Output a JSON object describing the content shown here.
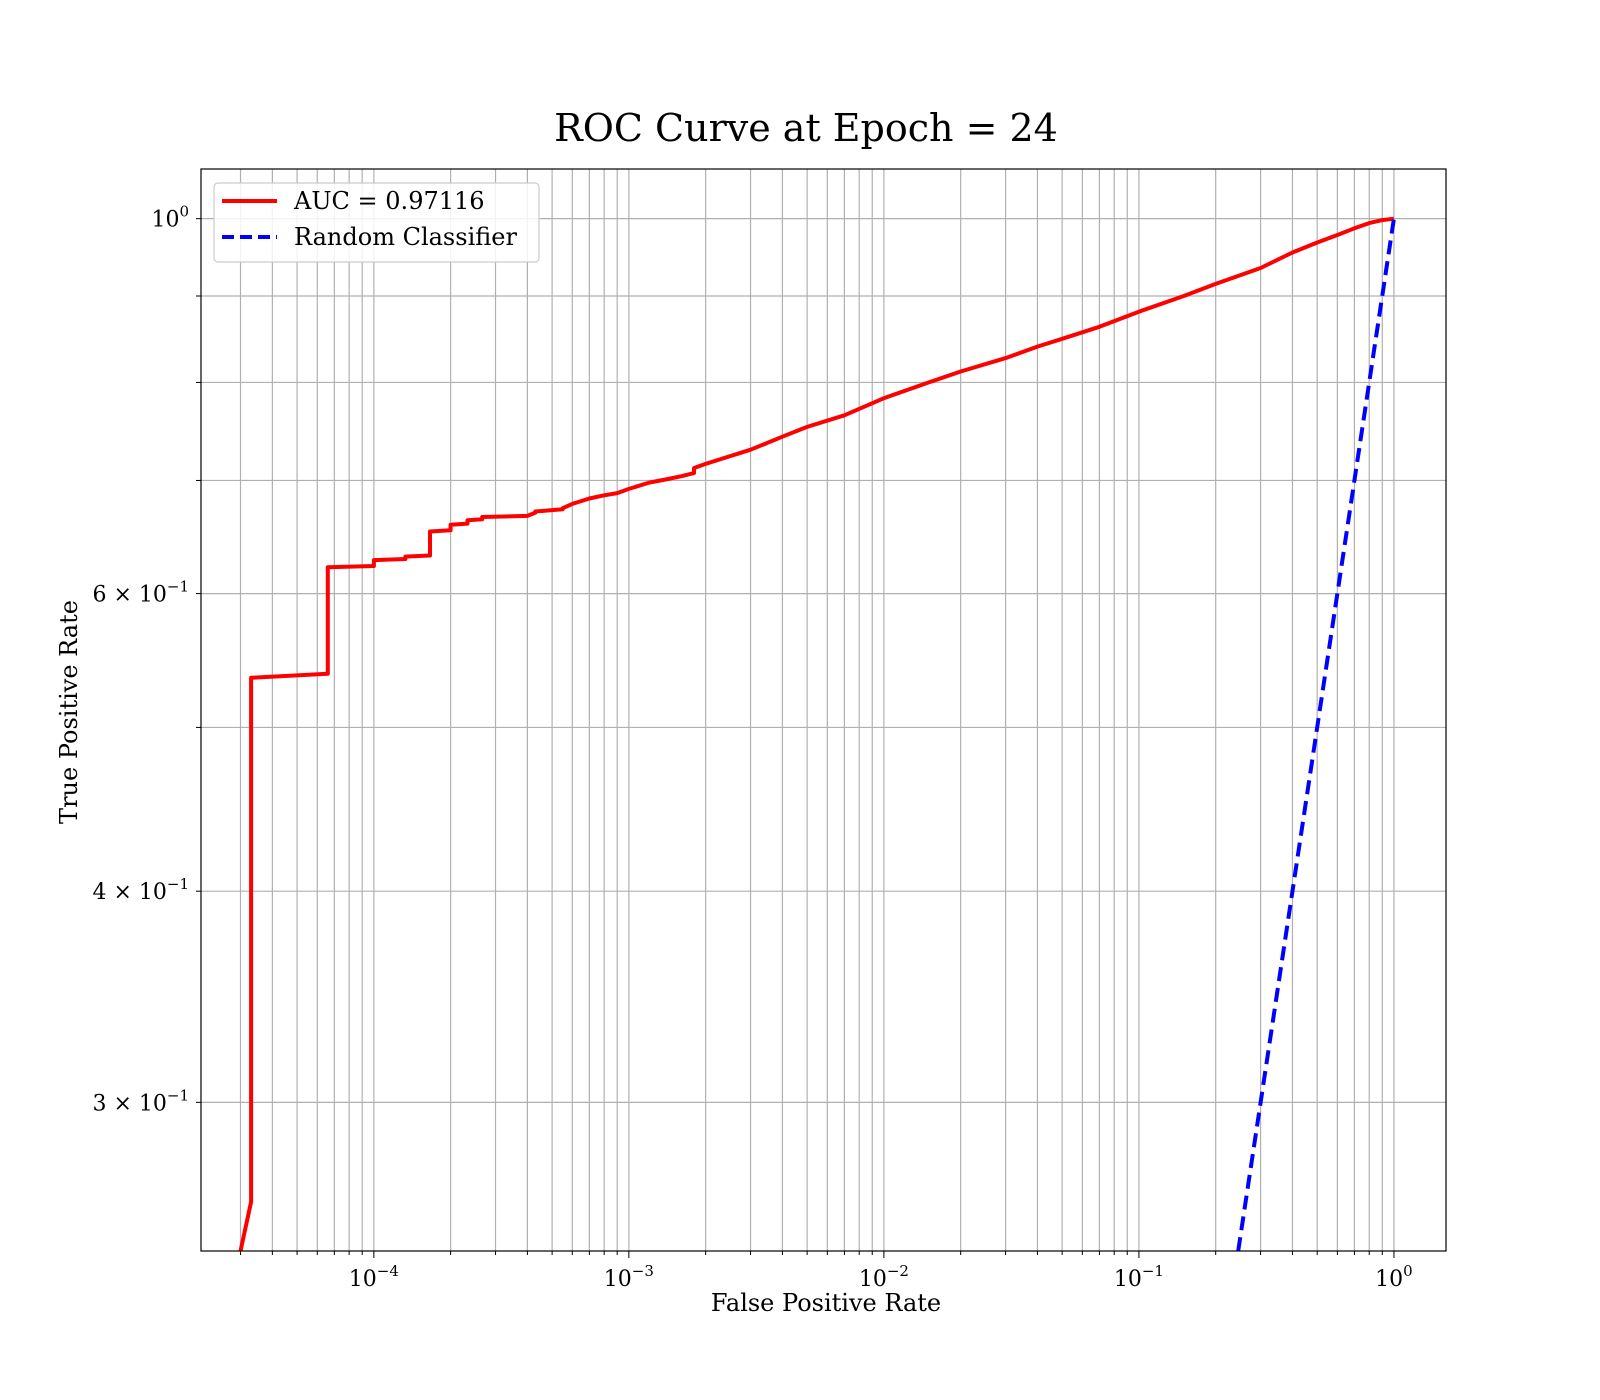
{
  "chart_data": {
    "type": "line",
    "title": "ROC Curve at Epoch = 24",
    "xlabel": "False Positive Rate",
    "ylabel": "True Positive Rate",
    "xscale": "log",
    "yscale": "log",
    "xlim": [
      2.1e-05,
      1.6
    ],
    "ylim": [
      0.245,
      1.07
    ],
    "grid": "both (major and minor)",
    "legend_position": "upper-left",
    "x_ticks": [
      {
        "value": 0.0001,
        "base": "10",
        "exp": "−4"
      },
      {
        "value": 0.001,
        "base": "10",
        "exp": "−3"
      },
      {
        "value": 0.01,
        "base": "10",
        "exp": "−2"
      },
      {
        "value": 0.1,
        "base": "10",
        "exp": "−1"
      },
      {
        "value": 1,
        "base": "10",
        "exp": "0"
      }
    ],
    "y_ticks": [
      {
        "value": 1.0,
        "base": "10",
        "exp": "0",
        "mant": ""
      },
      {
        "value": 0.6,
        "base": "10",
        "exp": "−1",
        "mant": "6 × "
      },
      {
        "value": 0.4,
        "base": "10",
        "exp": "−1",
        "mant": "4 × "
      },
      {
        "value": 0.3,
        "base": "10",
        "exp": "−1",
        "mant": "3 × "
      }
    ],
    "series": [
      {
        "name": "AUC = 0.97116",
        "color": "#ff0000",
        "style": "solid",
        "x": [
          3e-05,
          3.3e-05,
          3.3e-05,
          6.6e-05,
          6.6e-05,
          0.0001,
          0.0001,
          0.000133,
          0.000133,
          0.000166,
          0.000166,
          0.0002,
          0.0002,
          0.000233,
          0.000233,
          0.000266,
          0.000266,
          0.0004,
          0.00043,
          0.00043,
          0.00055,
          0.00055,
          0.0006,
          0.0007,
          0.0008,
          0.0009,
          0.001,
          0.0012,
          0.0014,
          0.0016,
          0.0018,
          0.0018,
          0.002,
          0.003,
          0.004,
          0.005,
          0.007,
          0.01,
          0.015,
          0.02,
          0.03,
          0.04,
          0.05,
          0.07,
          0.1,
          0.15,
          0.2,
          0.3,
          0.4,
          0.5,
          0.6,
          0.7,
          0.8,
          0.9,
          1.0
        ],
        "y": [
          0.245,
          0.262,
          0.535,
          0.538,
          0.622,
          0.623,
          0.628,
          0.629,
          0.631,
          0.632,
          0.653,
          0.654,
          0.659,
          0.66,
          0.663,
          0.664,
          0.666,
          0.667,
          0.67,
          0.671,
          0.673,
          0.674,
          0.678,
          0.683,
          0.686,
          0.688,
          0.692,
          0.698,
          0.701,
          0.704,
          0.707,
          0.712,
          0.716,
          0.73,
          0.743,
          0.753,
          0.765,
          0.783,
          0.8,
          0.812,
          0.827,
          0.84,
          0.849,
          0.863,
          0.881,
          0.9,
          0.915,
          0.935,
          0.955,
          0.968,
          0.978,
          0.987,
          0.994,
          0.998,
          1.0
        ]
      },
      {
        "name": "Random Classifier",
        "color": "#0000ff",
        "style": "dashed",
        "x": [
          0.245,
          1.0
        ],
        "y": [
          0.245,
          1.0
        ]
      }
    ]
  }
}
